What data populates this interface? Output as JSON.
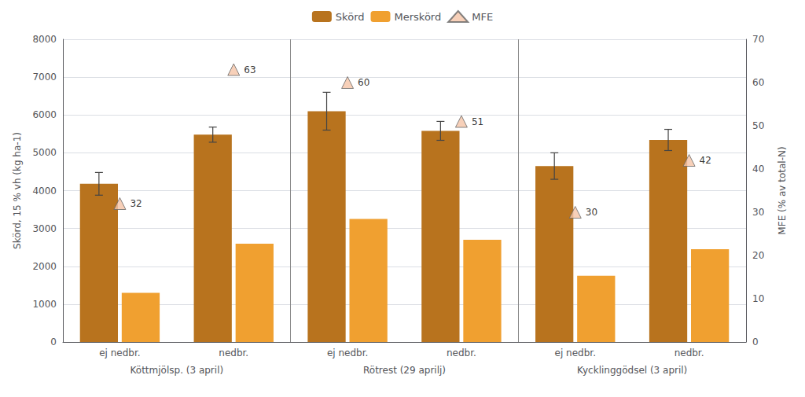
{
  "chart_data": {
    "type": "bar",
    "categories": [
      "ej nedbr.",
      "nedbr.",
      "ej nedbr.",
      "nedbr.",
      "ej nedbr.",
      "nedbr."
    ],
    "group_labels": [
      "Köttmjölsp. (3 april)",
      "Rötrest (29 aprilj)",
      "Kycklinggödsel (3 april)"
    ],
    "ylabel": "Skörd, 15 % vh (kg ha-1)",
    "y2label": "MFE (% av total-N)",
    "ylim": [
      0,
      8000
    ],
    "yticks": [
      0,
      1000,
      2000,
      3000,
      4000,
      5000,
      6000,
      7000,
      8000
    ],
    "y2lim": [
      0,
      70
    ],
    "y2ticks": [
      0,
      10,
      20,
      30,
      40,
      50,
      60,
      70
    ],
    "grid": true,
    "legend": "top",
    "series": [
      {
        "name": "Skörd",
        "color": "#b8731e",
        "values": [
          4180,
          5480,
          6100,
          5580,
          4650,
          5340
        ],
        "errors": [
          300,
          200,
          500,
          250,
          350,
          280
        ]
      },
      {
        "name": "Merskörd",
        "color": "#f0a030",
        "values": [
          1300,
          2600,
          3250,
          2700,
          1750,
          2450
        ]
      },
      {
        "name": "MFE",
        "type": "scatter",
        "marker": "triangle",
        "color": "#f5c4a8",
        "axis": "y2",
        "values": [
          32,
          63,
          60,
          51,
          30,
          42
        ],
        "data_labels": true
      }
    ]
  }
}
